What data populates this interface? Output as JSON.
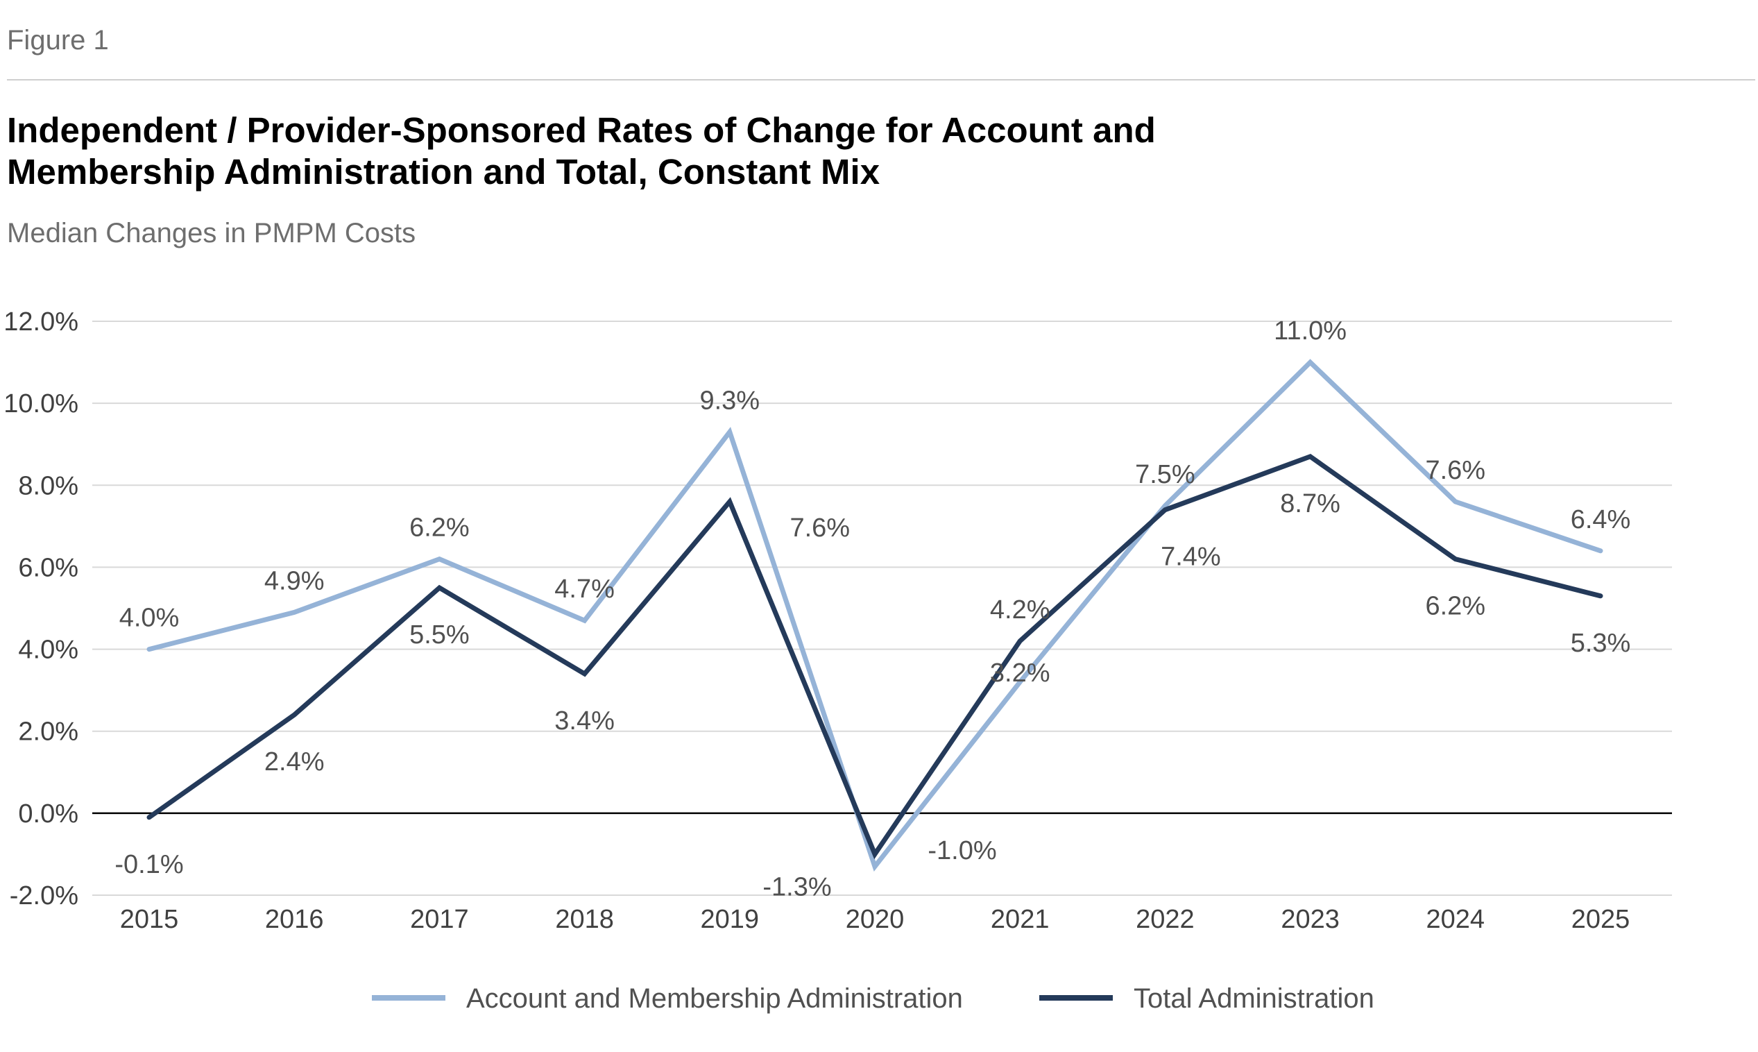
{
  "figure_label": "Figure 1",
  "chart_data": {
    "type": "line",
    "title": "Independent / Provider-Sponsored Rates of Change for Account and Membership Administration and Total, Constant Mix",
    "subtitle": "Median Changes in PMPM Costs",
    "xlabel": "",
    "ylabel": "",
    "x": [
      "2015",
      "2016",
      "2017",
      "2018",
      "2019",
      "2020",
      "2021",
      "2022",
      "2023",
      "2024",
      "2025"
    ],
    "ylim": [
      -2.0,
      12.0
    ],
    "yticks": [
      -2.0,
      0.0,
      2.0,
      4.0,
      6.0,
      8.0,
      10.0,
      12.0
    ],
    "ytick_labels": [
      "-2.0%",
      "0.0%",
      "2.0%",
      "4.0%",
      "6.0%",
      "8.0%",
      "10.0%",
      "12.0%"
    ],
    "grid": "horizontal",
    "legend_position": "bottom",
    "series": [
      {
        "name": "Account and Membership Administration",
        "color": "#95b3d7",
        "values": [
          4.0,
          4.9,
          6.2,
          4.7,
          9.3,
          -1.3,
          3.2,
          7.5,
          11.0,
          7.6,
          6.4
        ],
        "labels": [
          "4.0%",
          "4.9%",
          "6.2%",
          "4.7%",
          "9.3%",
          "-1.3%",
          "3.2%",
          "7.5%",
          "11.0%",
          "7.6%",
          "6.4%"
        ]
      },
      {
        "name": "Total Administration",
        "color": "#243a5a",
        "values": [
          -0.1,
          2.4,
          5.5,
          3.4,
          7.6,
          -1.0,
          4.2,
          7.4,
          8.7,
          6.2,
          5.3
        ],
        "labels": [
          "-0.1%",
          "2.4%",
          "5.5%",
          "3.4%",
          "7.6%",
          "-1.0%",
          "4.2%",
          "7.4%",
          "8.7%",
          "6.2%",
          "5.3%"
        ]
      }
    ]
  }
}
